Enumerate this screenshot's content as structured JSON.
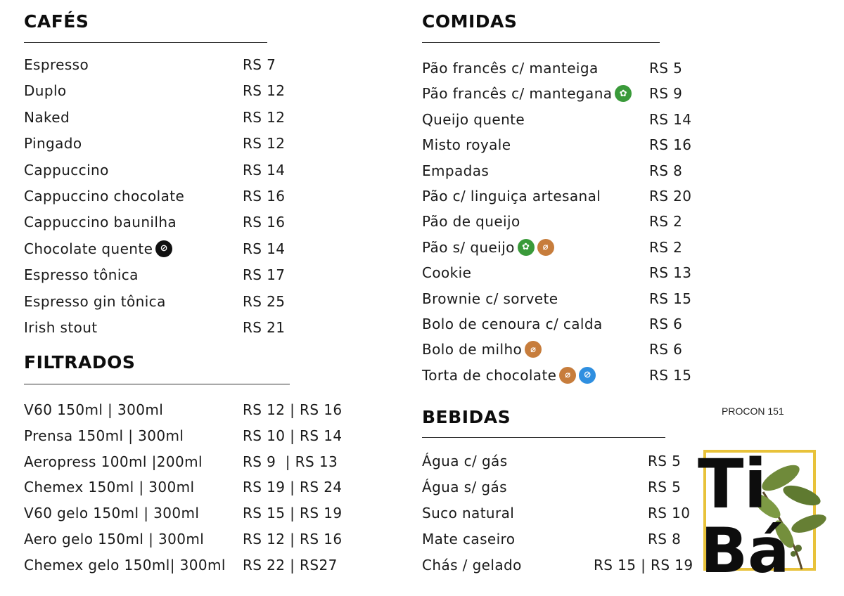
{
  "colors": {
    "vegan": "#3a9a3a",
    "gluten_free": "#c77d3c",
    "lactose_free": "#2f8fe0",
    "dark_icon": "#111111",
    "logo_frame": "#e8c23a"
  },
  "cafes": {
    "title": "CAFÉS",
    "items": [
      {
        "name": "Espresso",
        "price": "RS 7"
      },
      {
        "name": "Duplo",
        "price": "RS 12"
      },
      {
        "name": "Naked",
        "price": "RS 12"
      },
      {
        "name": "Pingado",
        "price": "RS 12"
      },
      {
        "name": "Cappuccino",
        "price": "RS 14"
      },
      {
        "name": "Cappuccino chocolate",
        "price": "RS 16"
      },
      {
        "name": "Cappuccino baunilha",
        "price": "RS 16"
      },
      {
        "name": "Chocolate quente",
        "price": "RS 14"
      },
      {
        "name": "Espresso tônica",
        "price": "RS 17"
      },
      {
        "name": "Espresso gin tônica",
        "price": "RS 25"
      },
      {
        "name": "Irish stout",
        "price": "RS 21"
      }
    ]
  },
  "filtrados": {
    "title": "FILTRADOS",
    "items": [
      {
        "name": "V60 150ml | 300ml",
        "price": "RS 12 | RS 16"
      },
      {
        "name": "Prensa 150ml | 300ml",
        "price": "RS 10 | RS 14"
      },
      {
        "name": "Aeropress 100ml |200ml",
        "price": "RS 9  | RS 13"
      },
      {
        "name": "Chemex 150ml | 300ml",
        "price": "RS 19 | RS 24"
      },
      {
        "name": "V60 gelo 150ml | 300ml",
        "price": "RS 15 | RS 19"
      },
      {
        "name": "Aero gelo 150ml | 300ml",
        "price": "RS 12 | RS 16"
      },
      {
        "name": "Chemex gelo 150ml| 300ml",
        "price": "RS 22 | RS27"
      }
    ]
  },
  "comidas": {
    "title": "COMIDAS",
    "items": [
      {
        "name": "Pão francês c/ manteiga",
        "price": "RS 5"
      },
      {
        "name": "Pão francês c/ mantegana",
        "price": "RS 9"
      },
      {
        "name": "Queijo quente",
        "price": "RS 14"
      },
      {
        "name": "Misto royale",
        "price": "RS 16"
      },
      {
        "name": "Empadas",
        "price": "RS 8"
      },
      {
        "name": "Pão c/ linguiça artesanal",
        "price": "RS 20"
      },
      {
        "name": "Pão de queijo",
        "price": "RS 2"
      },
      {
        "name": "Pão s/ queijo",
        "price": "RS 2"
      },
      {
        "name": "Cookie",
        "price": "RS 13"
      },
      {
        "name": "Brownie c/ sorvete",
        "price": "RS 15"
      },
      {
        "name": "Bolo de cenoura c/ calda",
        "price": "RS 6"
      },
      {
        "name": "Bolo de milho",
        "price": "RS 6"
      },
      {
        "name": "Torta de chocolate",
        "price": "RS 15"
      }
    ]
  },
  "bebidas": {
    "title": "BEBIDAS",
    "items": [
      {
        "name": "Água c/ gás",
        "price": "RS 5"
      },
      {
        "name": "Água s/ gás",
        "price": "RS 5"
      },
      {
        "name": "Suco natural",
        "price": "RS 10"
      },
      {
        "name": "Mate caseiro",
        "price": "RS 8"
      },
      {
        "name": "Chás / gelado",
        "price": "RS 15 | RS 19"
      }
    ]
  },
  "procon": "PROCON 151",
  "logo": {
    "line1": "Ti",
    "line2": "Bá"
  }
}
